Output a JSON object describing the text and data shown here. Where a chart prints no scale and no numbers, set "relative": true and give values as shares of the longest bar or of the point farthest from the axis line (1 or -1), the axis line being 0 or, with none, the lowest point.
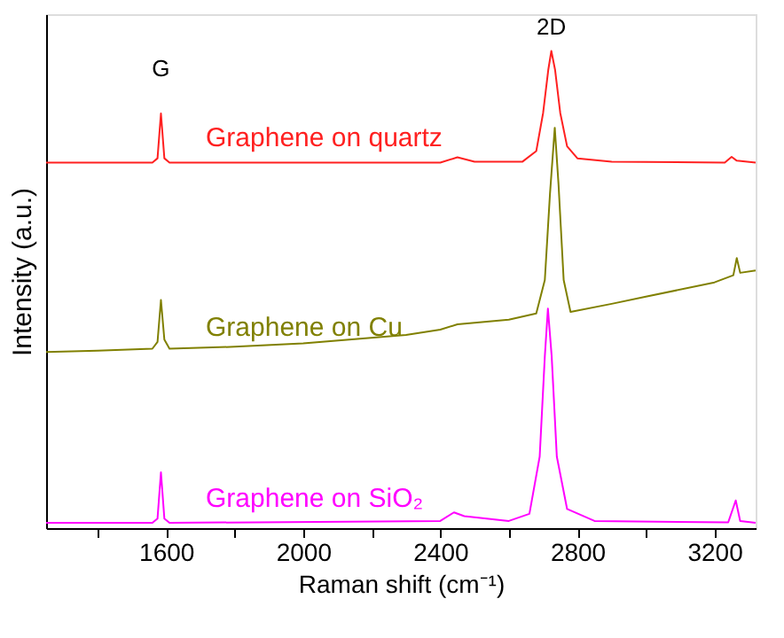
{
  "chart_data": {
    "type": "line",
    "relative": true,
    "xlabel": "Raman shift (cm⁻¹)",
    "ylabel": "Intensity (a.u.)",
    "xlim": [
      1250,
      3320
    ],
    "xticks": [
      {
        "value": 1400,
        "label": null
      },
      1600,
      {
        "value": 1800,
        "label": null
      },
      2000,
      {
        "value": 2200,
        "label": null
      },
      2400,
      {
        "value": 2600,
        "label": null
      },
      2800,
      {
        "value": 3000,
        "label": null
      },
      3200
    ],
    "tick_labels": "x",
    "grid": false,
    "marker": "none",
    "line_style": "solid",
    "annotations": [
      {
        "text": "G",
        "x": 1585,
        "y": 0.869
      },
      {
        "text": "2D",
        "x": 2724,
        "y": 1.0
      }
    ],
    "series": [
      {
        "name": "Graphene on quartz",
        "color": "#ff2020",
        "x": [
          1250,
          1560,
          1575,
          1585,
          1595,
          1610,
          2400,
          2450,
          2500,
          2640,
          2680,
          2700,
          2715,
          2724,
          2735,
          2750,
          2770,
          2800,
          2900,
          3230,
          3250,
          3265,
          3320
        ],
        "values": [
          0.766,
          0.766,
          0.775,
          0.869,
          0.775,
          0.766,
          0.766,
          0.777,
          0.768,
          0.768,
          0.79,
          0.87,
          0.96,
          1.0,
          0.96,
          0.87,
          0.8,
          0.775,
          0.768,
          0.766,
          0.778,
          0.77,
          0.766
        ]
      },
      {
        "name": "Graphene on Cu",
        "color": "#808000",
        "x": [
          1250,
          1400,
          1560,
          1575,
          1585,
          1595,
          1610,
          1800,
          2000,
          2300,
          2400,
          2450,
          2600,
          2680,
          2705,
          2720,
          2734,
          2745,
          2760,
          2780,
          2900,
          3000,
          3200,
          3255,
          3265,
          3275,
          3320
        ],
        "values": [
          0.369,
          0.372,
          0.376,
          0.39,
          0.478,
          0.395,
          0.376,
          0.38,
          0.387,
          0.405,
          0.416,
          0.427,
          0.437,
          0.45,
          0.52,
          0.7,
          0.839,
          0.72,
          0.52,
          0.453,
          0.47,
          0.485,
          0.515,
          0.53,
          0.566,
          0.535,
          0.54
        ]
      },
      {
        "name": "Graphene on SiO₂",
        "color": "#ff00ff",
        "x": [
          1250,
          1560,
          1575,
          1585,
          1595,
          1610,
          2400,
          2440,
          2470,
          2600,
          2660,
          2690,
          2705,
          2714,
          2725,
          2740,
          2770,
          2850,
          3240,
          3262,
          3275,
          3320
        ],
        "values": [
          0.011,
          0.011,
          0.02,
          0.117,
          0.02,
          0.011,
          0.015,
          0.033,
          0.025,
          0.015,
          0.03,
          0.15,
          0.36,
          0.46,
          0.36,
          0.15,
          0.04,
          0.015,
          0.012,
          0.058,
          0.015,
          0.011
        ]
      }
    ]
  }
}
